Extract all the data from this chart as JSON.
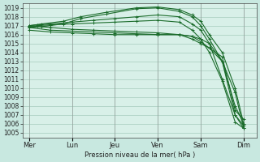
{
  "bg_color": "#c8e8e0",
  "plot_bg_color": "#d8f0e8",
  "grid_color": "#a0c8b8",
  "line_color": "#1a6b2a",
  "ylabel": "Pression niveau de la mer( hPa )",
  "ylim": [
    1004.5,
    1019.5
  ],
  "yticks": [
    1005,
    1006,
    1007,
    1008,
    1009,
    1010,
    1011,
    1012,
    1013,
    1014,
    1015,
    1016,
    1017,
    1018,
    1019
  ],
  "xlabels": [
    "Mer",
    "Lun",
    "Jeu",
    "Ven",
    "Sam",
    "Dim"
  ],
  "xpositions": [
    0,
    1,
    2,
    3,
    4,
    5
  ],
  "series": [
    {
      "x": [
        0,
        0.3,
        0.8,
        1.2,
        1.8,
        2.5,
        3.0,
        3.5,
        3.8,
        4.0,
        4.2,
        4.5,
        4.8,
        5.0
      ],
      "y": [
        1017.0,
        1017.2,
        1017.5,
        1018.0,
        1018.5,
        1019.0,
        1019.1,
        1018.8,
        1018.2,
        1017.5,
        1016.0,
        1014.0,
        1010.0,
        1006.0
      ]
    },
    {
      "x": [
        0,
        0.3,
        0.8,
        1.2,
        1.8,
        2.5,
        3.0,
        3.5,
        3.8,
        4.0,
        4.2,
        4.5,
        4.8,
        5.0
      ],
      "y": [
        1016.8,
        1016.9,
        1017.2,
        1017.8,
        1018.3,
        1018.9,
        1019.0,
        1018.6,
        1018.0,
        1017.0,
        1015.5,
        1013.0,
        1009.5,
        1005.5
      ]
    },
    {
      "x": [
        0,
        0.5,
        1.0,
        1.5,
        2.0,
        2.5,
        3.0,
        3.5,
        3.8,
        4.0,
        4.2,
        4.5,
        4.8,
        5.0
      ],
      "y": [
        1016.5,
        1016.3,
        1016.2,
        1016.1,
        1016.0,
        1016.0,
        1016.0,
        1016.0,
        1015.8,
        1015.5,
        1015.0,
        1011.0,
        1007.0,
        1005.5
      ]
    },
    {
      "x": [
        0,
        0.5,
        1.0,
        1.5,
        2.0,
        2.5,
        3.0,
        3.5,
        3.8,
        4.0,
        4.2,
        4.5,
        4.8,
        5.0
      ],
      "y": [
        1016.8,
        1016.5,
        1016.4,
        1016.3,
        1016.2,
        1016.1,
        1016.0,
        1016.0,
        1015.5,
        1015.0,
        1014.5,
        1013.0,
        1008.0,
        1006.0
      ]
    },
    {
      "x": [
        0,
        0.5,
        1.0,
        1.5,
        2.0,
        2.5,
        3.0,
        3.5,
        3.8,
        4.0,
        4.2,
        4.5,
        4.8,
        5.0
      ],
      "y": [
        1017.0,
        1016.8,
        1016.6,
        1016.5,
        1016.4,
        1016.3,
        1016.2,
        1016.0,
        1015.8,
        1015.2,
        1014.5,
        1013.5,
        1007.5,
        1006.5
      ]
    },
    {
      "x": [
        0,
        0.2,
        0.5,
        1.0,
        1.5,
        2.0,
        2.5,
        3.0,
        3.5,
        3.8,
        4.0,
        4.2,
        4.5,
        4.8,
        5.0
      ],
      "y": [
        1016.9,
        1017.0,
        1017.1,
        1017.2,
        1017.3,
        1017.4,
        1017.5,
        1017.6,
        1017.4,
        1016.5,
        1015.5,
        1014.0,
        1010.8,
        1006.2,
        1005.5
      ]
    },
    {
      "x": [
        0,
        0.2,
        0.5,
        1.0,
        1.5,
        2.0,
        2.5,
        3.0,
        3.5,
        3.8,
        4.0,
        4.2,
        4.5,
        4.8,
        5.0
      ],
      "y": [
        1017.0,
        1017.1,
        1017.2,
        1017.4,
        1017.6,
        1017.8,
        1018.0,
        1018.2,
        1018.0,
        1017.2,
        1016.5,
        1015.0,
        1013.0,
        1007.0,
        1005.8
      ]
    }
  ]
}
